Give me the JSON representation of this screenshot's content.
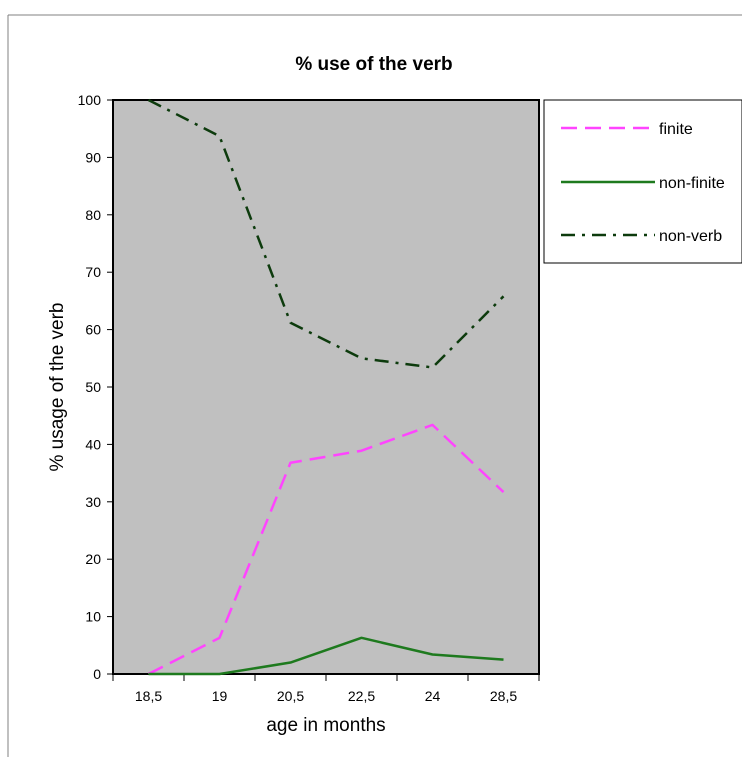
{
  "chart_data": {
    "type": "line",
    "title": "% use of the verb",
    "xlabel": "age in months",
    "ylabel": "% usage of the verb",
    "categories": [
      "18,5",
      "19",
      "20,5",
      "22,5",
      "24",
      "28,5"
    ],
    "ylim": [
      0,
      100
    ],
    "yticks": [
      0,
      10,
      20,
      30,
      40,
      50,
      60,
      70,
      80,
      90,
      100
    ],
    "grid": false,
    "plot_background": "#c0c0c0",
    "legend_position": "right",
    "series": [
      {
        "name": "finite",
        "color": "#ff44ff",
        "style": "dashed",
        "values": [
          0,
          6.3,
          36.8,
          38.9,
          43.4,
          31.7
        ]
      },
      {
        "name": "non-finite",
        "color": "#1e7a1e",
        "style": "solid",
        "values": [
          0,
          0,
          2.0,
          6.3,
          3.4,
          2.5
        ]
      },
      {
        "name": "non-verb",
        "color": "#0d3b0d",
        "style": "dash-dot",
        "values": [
          100,
          93.7,
          61.2,
          55.0,
          53.4,
          65.8
        ]
      }
    ]
  }
}
